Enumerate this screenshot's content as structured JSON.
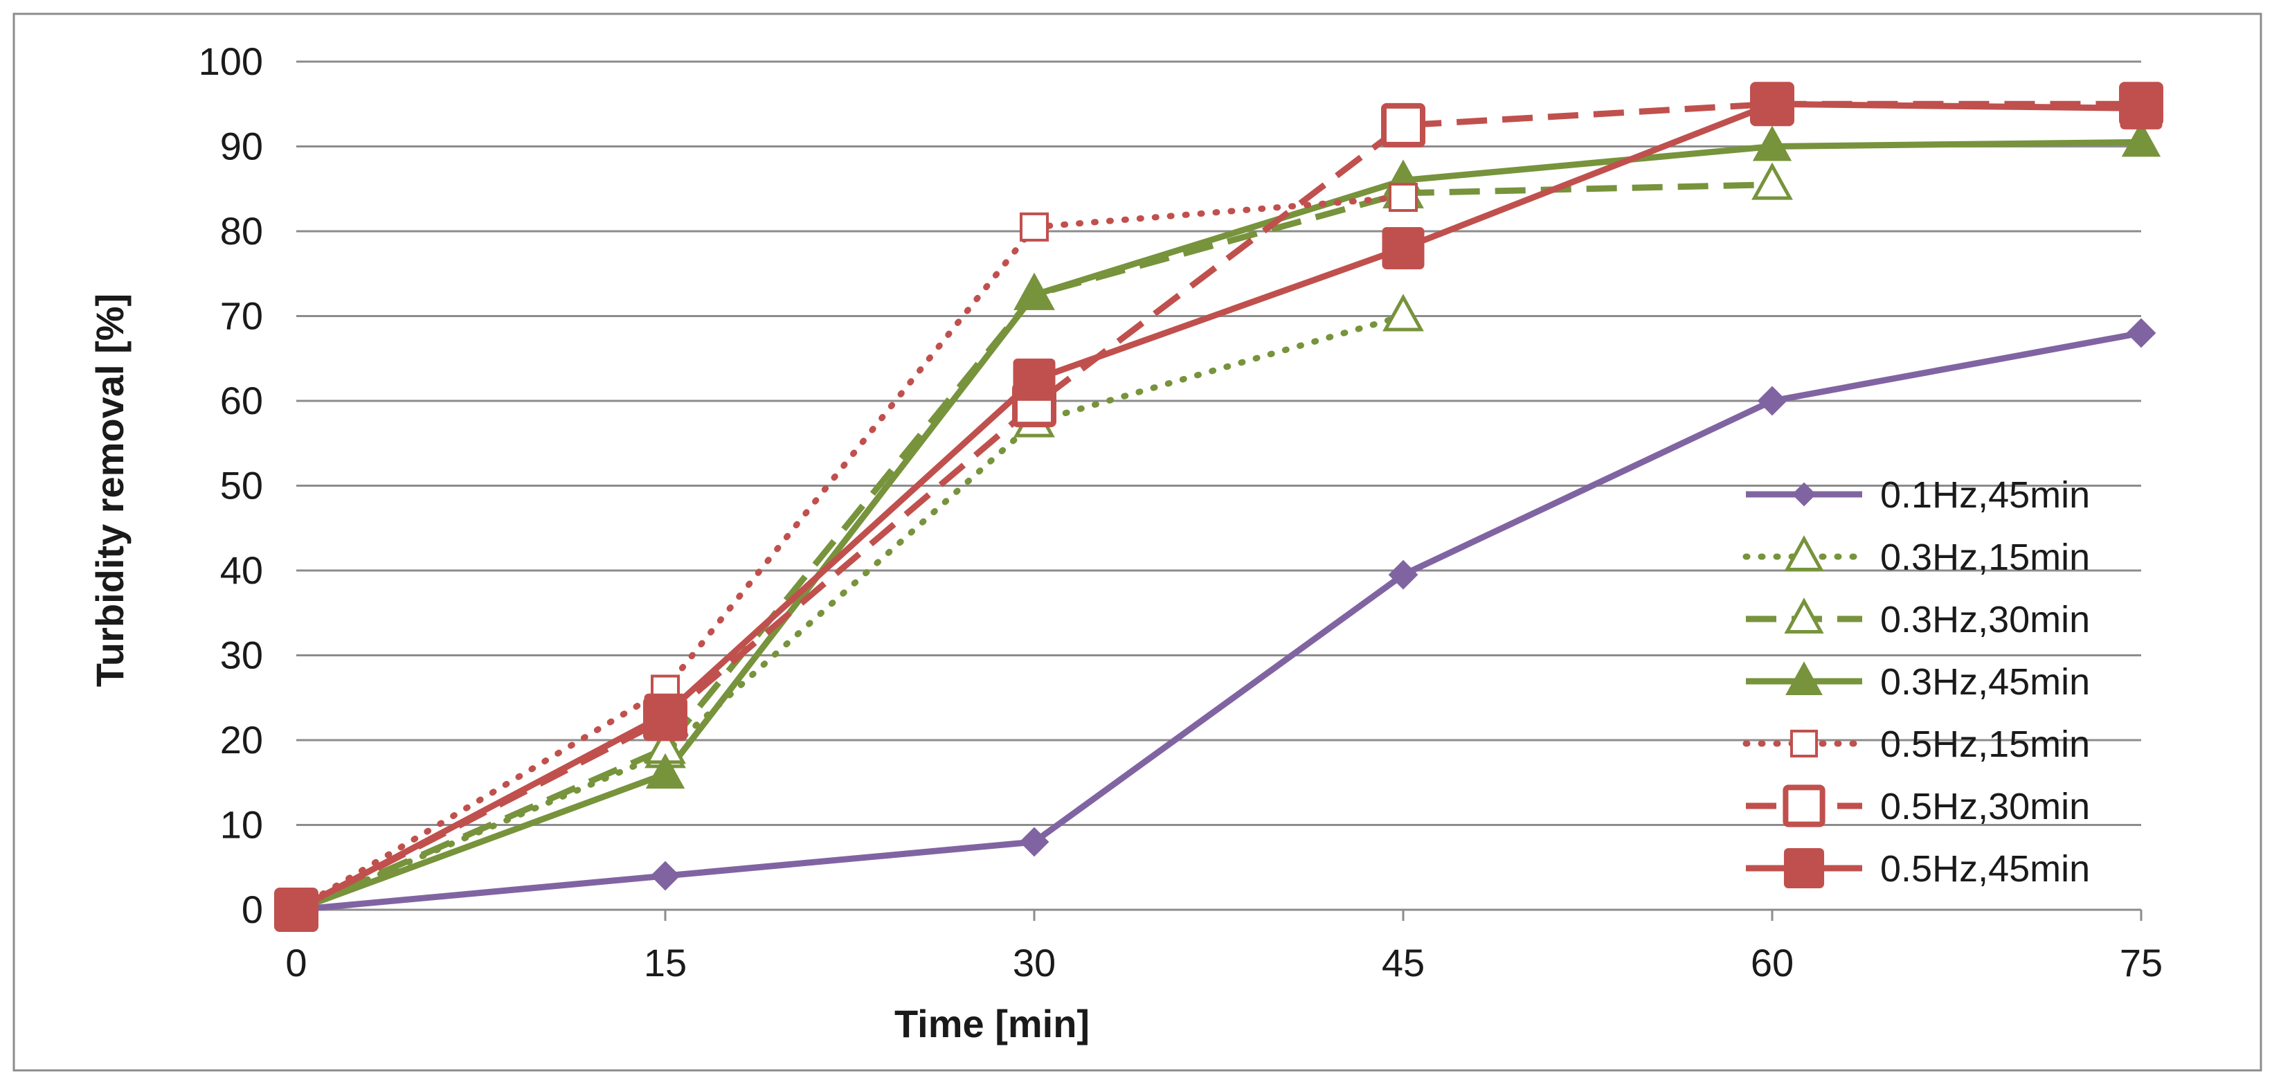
{
  "chart_data": {
    "type": "line",
    "title": "",
    "xlabel": "Time [min]",
    "ylabel": "Turbidity removal [%]",
    "xlim": [
      0,
      75
    ],
    "ylim": [
      0,
      100
    ],
    "x_ticks": [
      "0",
      "15",
      "30",
      "45",
      "60",
      "75"
    ],
    "y_ticks": [
      "0",
      "10",
      "20",
      "30",
      "40",
      "50",
      "60",
      "70",
      "80",
      "90",
      "100"
    ],
    "grid": "horizontal",
    "legend_position": "right",
    "colors": {
      "purple": "#8064A2",
      "green": "#77933C",
      "red": "#C0504D",
      "grid": "#8c8c8c",
      "frame": "#8c8c8c"
    },
    "series": [
      {
        "name": "0.1Hz,45min",
        "color": "#8064A2",
        "line": "solid",
        "marker": "diamond",
        "marker_fill": "filled",
        "x": [
          0,
          15,
          30,
          45,
          60,
          75
        ],
        "values": [
          0,
          4,
          8,
          39.5,
          60,
          68
        ]
      },
      {
        "name": "0.3Hz,15min",
        "color": "#77933C",
        "line": "dotted",
        "marker": "triangle",
        "marker_fill": "hollow",
        "x": [
          0,
          15,
          30,
          45
        ],
        "values": [
          0,
          18.5,
          57.5,
          70
        ]
      },
      {
        "name": "0.3Hz,30min",
        "color": "#77933C",
        "line": "dashed",
        "marker": "triangle",
        "marker_fill": "hollow",
        "x": [
          0,
          15,
          30,
          45,
          60
        ],
        "values": [
          0,
          19,
          72.5,
          84.5,
          85.5
        ]
      },
      {
        "name": "0.3Hz,45min",
        "color": "#77933C",
        "line": "solid",
        "marker": "triangle",
        "marker_fill": "filled",
        "x": [
          0,
          15,
          30,
          45,
          60,
          75
        ],
        "values": [
          0,
          16,
          72.5,
          86,
          90,
          90.5
        ]
      },
      {
        "name": "0.5Hz,15min",
        "color": "#C0504D",
        "line": "dotted",
        "marker": "square",
        "marker_fill": "hollow-small",
        "x": [
          0,
          15,
          30,
          45
        ],
        "values": [
          0,
          26,
          80.5,
          84
        ]
      },
      {
        "name": "0.5Hz,30min",
        "color": "#C0504D",
        "line": "dashed",
        "marker": "square",
        "marker_fill": "hollow",
        "x": [
          0,
          15,
          30,
          45,
          60,
          75
        ],
        "values": [
          0,
          22.5,
          59.5,
          92.5,
          95,
          95
        ]
      },
      {
        "name": "0.5Hz,45min",
        "color": "#C0504D",
        "line": "solid",
        "marker": "square",
        "marker_fill": "filled",
        "x": [
          0,
          15,
          30,
          45,
          60,
          75
        ],
        "values": [
          0,
          23,
          62.5,
          78,
          95,
          94.5
        ]
      }
    ]
  }
}
